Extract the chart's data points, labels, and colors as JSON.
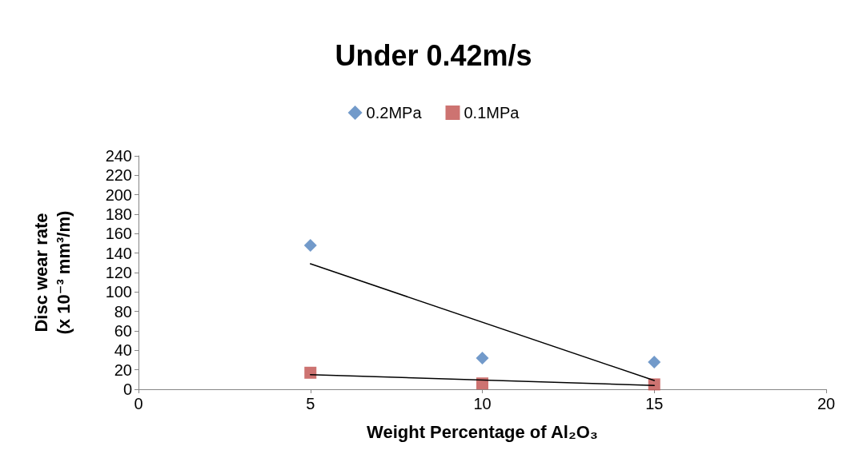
{
  "chart_data": {
    "type": "scatter",
    "title": "Under 0.42m/s",
    "xlabel": "Weight Percentage of Al₂O₃",
    "ylabel": "Disc wear rate\n(x 10⁻³ mm³/m)",
    "x": [
      5,
      10,
      15
    ],
    "series": [
      {
        "name": "0.2MPa",
        "color": "#4f81bd",
        "marker": "diamond",
        "values": [
          148,
          32,
          28
        ]
      },
      {
        "name": "0.1MPa",
        "color": "#c0504d",
        "marker": "square",
        "values": [
          17,
          6,
          5
        ]
      },
      {
        "type": "line",
        "color": "#000000",
        "marker": "none",
        "values": [
          129,
          null,
          9
        ]
      },
      {
        "type": "line",
        "color": "#000000",
        "marker": "none",
        "values": [
          15,
          null,
          4
        ]
      }
    ],
    "xlim": [
      0,
      20
    ],
    "xticks": [
      0,
      5,
      10,
      15,
      20
    ],
    "ylim": [
      0,
      240
    ],
    "yticks": [
      0,
      20,
      40,
      60,
      80,
      100,
      120,
      140,
      160,
      180,
      200,
      220,
      240
    ],
    "grid": false,
    "legend": "top"
  }
}
